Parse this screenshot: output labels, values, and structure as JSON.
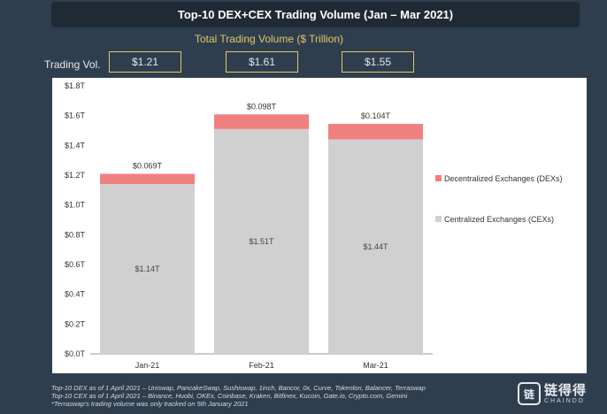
{
  "header": {
    "title": "Top-10 DEX+CEX Trading Volume (Jan – Mar 2021)",
    "subtitle": "Total Trading Volume ($ Trillion)",
    "row_label": "Trading Vol."
  },
  "totals": [
    "$1.21",
    "$1.61",
    "$1.55"
  ],
  "chart_data": {
    "type": "bar",
    "stacked": true,
    "categories": [
      "Jan-21",
      "Feb-21",
      "Mar-21"
    ],
    "series": [
      {
        "name": "Centralized Exchanges (CEXs)",
        "values": [
          1.14,
          1.51,
          1.44
        ],
        "labels": [
          "$1.14T",
          "$1.51T",
          "$1.44T"
        ],
        "color": "#d0d0d0"
      },
      {
        "name": "Decentralized Exchanges (DEXs)",
        "values": [
          0.069,
          0.098,
          0.104
        ],
        "labels": [
          "$0.069T",
          "$0.098T",
          "$0.104T"
        ],
        "color": "#f08080"
      }
    ],
    "ylim": [
      0,
      1.8
    ],
    "yticks": [
      0,
      0.2,
      0.4,
      0.6,
      0.8,
      1.0,
      1.2,
      1.4,
      1.6,
      1.8
    ],
    "ytick_labels": [
      "$0.0T",
      "$0.2T",
      "$0.4T",
      "$0.6T",
      "$0.8T",
      "$1.0T",
      "$1.2T",
      "$1.4T",
      "$1.6T",
      "$1.8T"
    ],
    "legend_position": "right",
    "legend_order": [
      "Decentralized Exchanges (DEXs)",
      "Centralized Exchanges (CEXs)"
    ],
    "grid": false
  },
  "footnotes": [
    "Top-10 DEX as of 1 April 2021 – Uniswap, PancakeSwap, Sushiswap, 1inch, Bancor, 0x, Curve, Tokenlon, Balancer, Terraswap",
    "Top-10 CEX as of 1 April 2021 – Binance, Huobi, OKEx, Coinbase, Kraken, Bitfinex, Kucoin, Gate.io, Crypto.com, Gemini",
    "*Terraswap's trading volume was only tracked on 5th January 2021"
  ],
  "watermark": {
    "mark": "链",
    "name_cn": "链得得",
    "name_en": "CHAINDD"
  }
}
